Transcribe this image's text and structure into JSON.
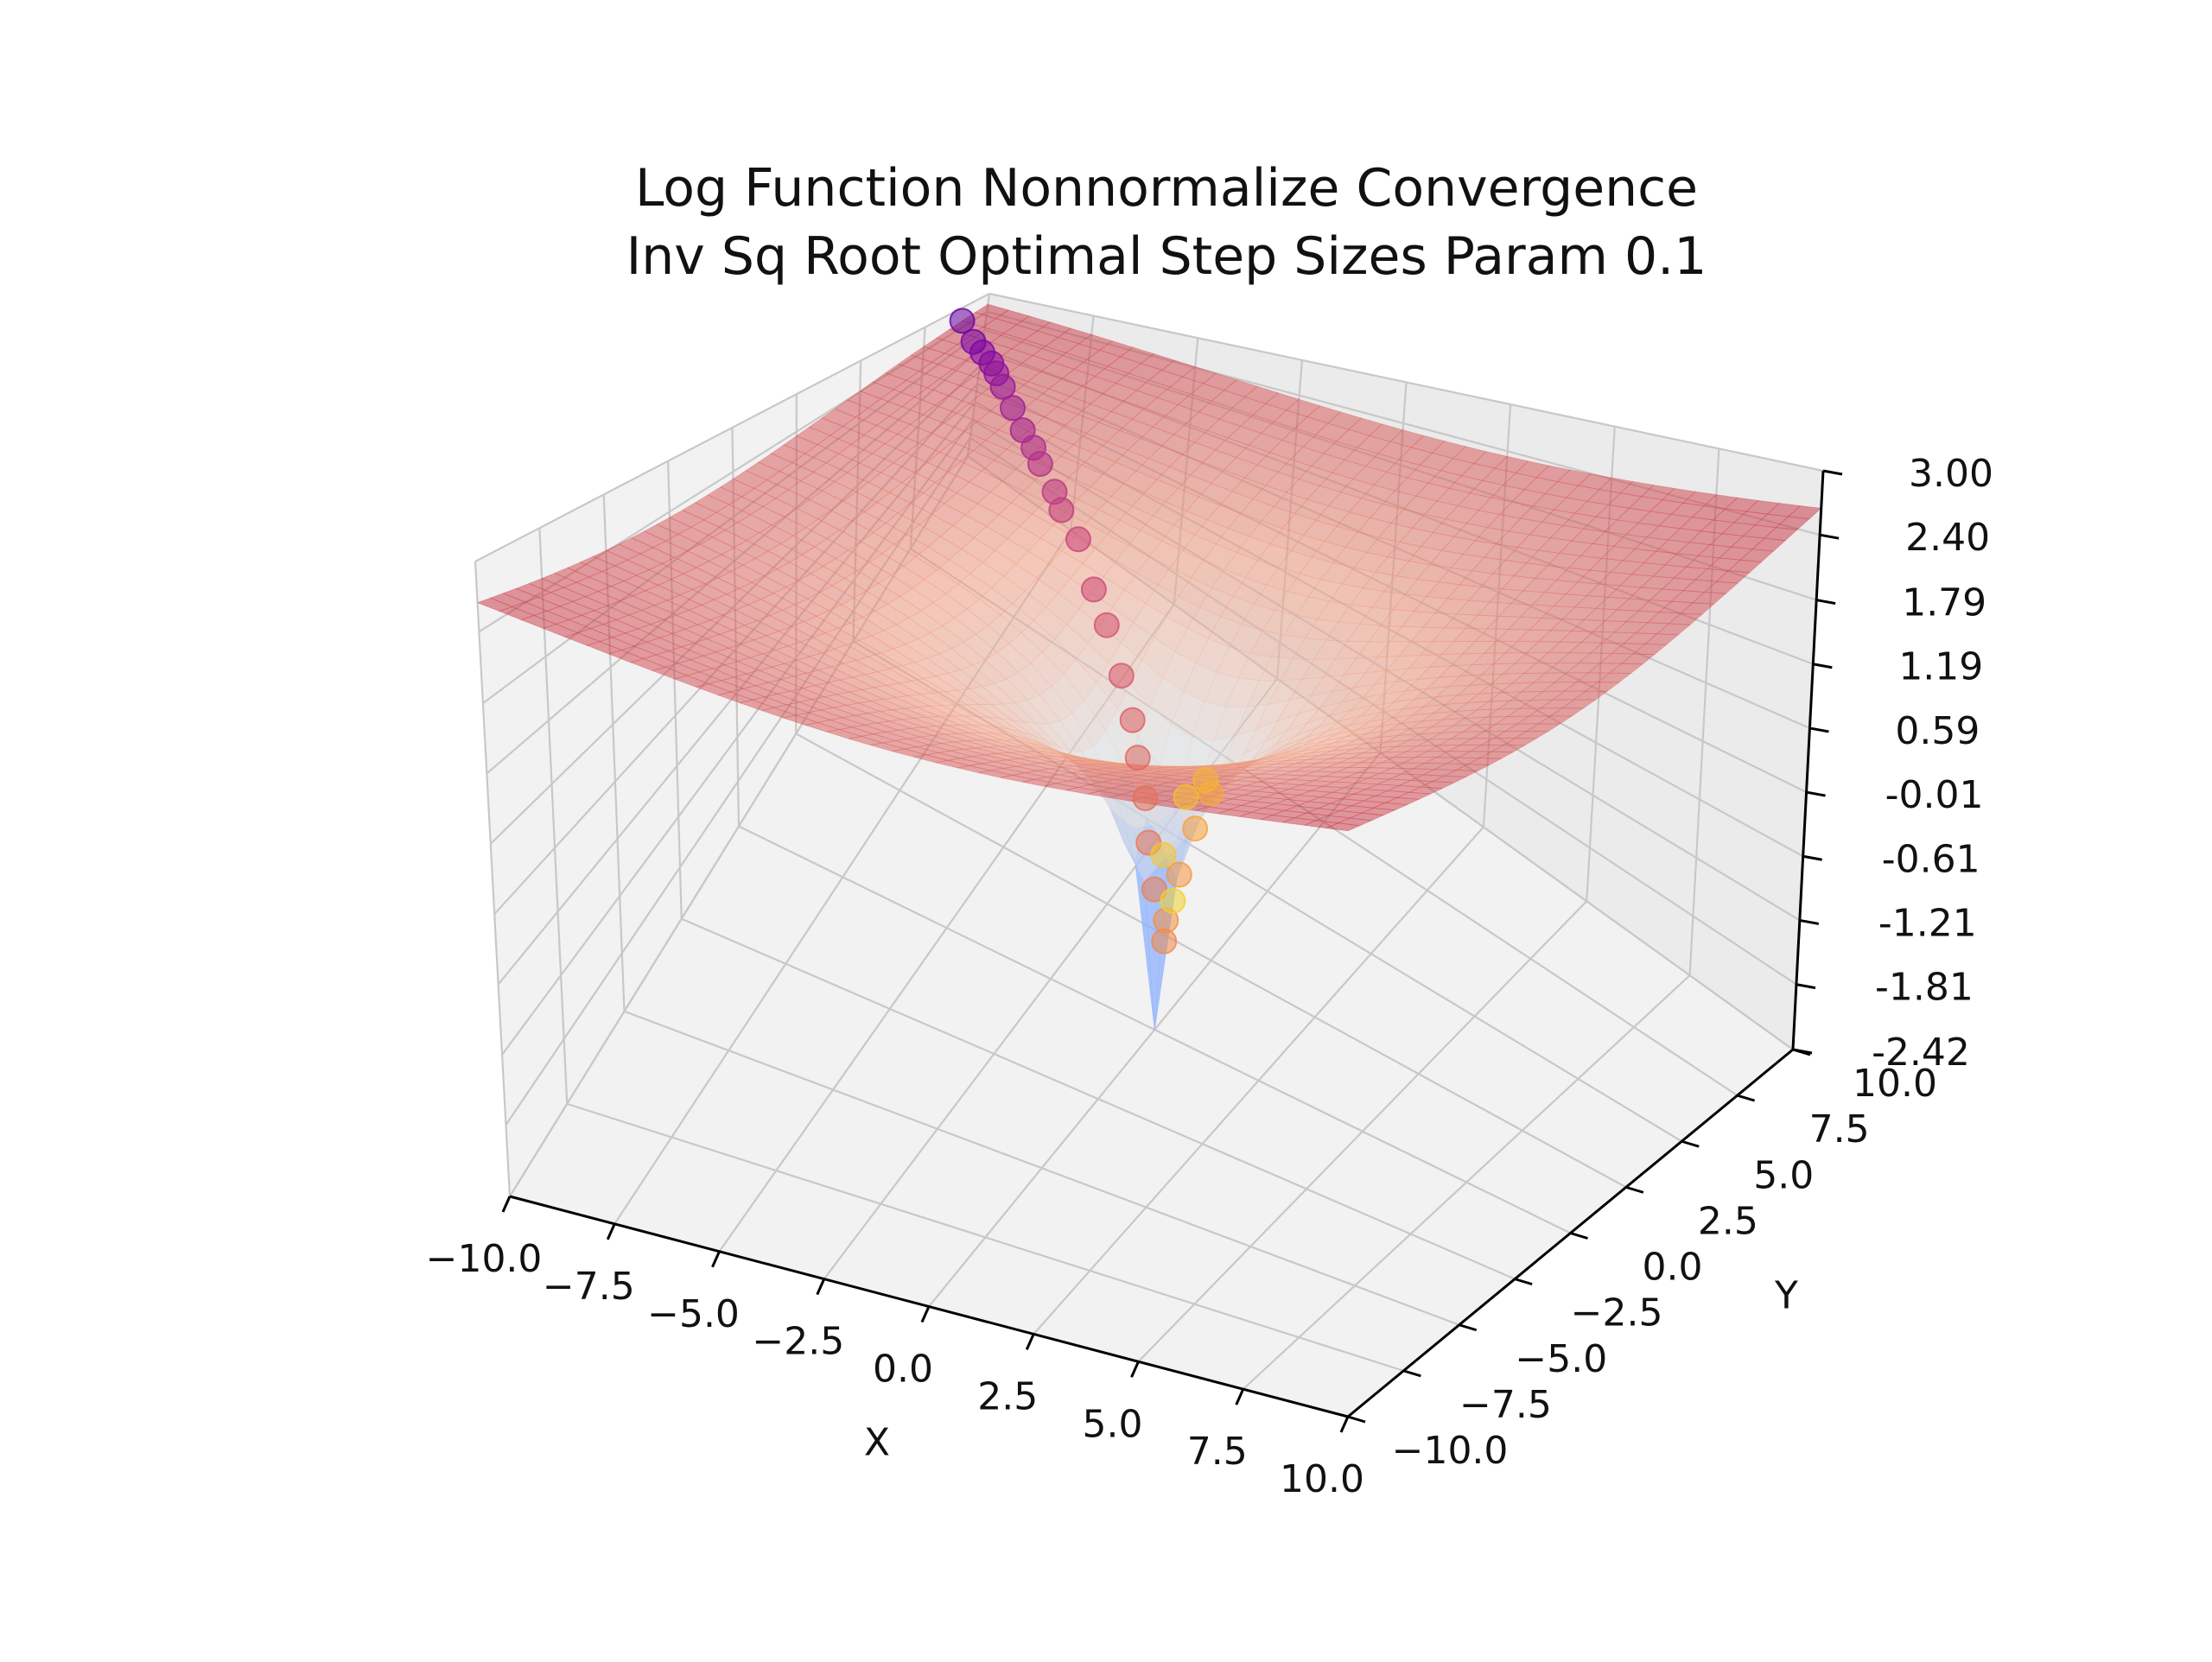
{
  "chart_data": {
    "type": "surface3d",
    "title_line1": "Log Function Nonnormalize Convergence",
    "title_line2": "Inv Sq Root Optimal Step Sizes Param 0.1",
    "xlabel": "X",
    "ylabel": "Y",
    "zlabel": "",
    "xlim": [
      -10,
      10
    ],
    "ylim": [
      -10,
      10
    ],
    "zlim": [
      -2.42,
      3.0
    ],
    "x_ticks": [
      "−10.0",
      "−7.5",
      "−5.0",
      "−2.5",
      "0.0",
      "2.5",
      "5.0",
      "7.5",
      "10.0"
    ],
    "y_ticks": [
      "−10.0",
      "−7.5",
      "−5.0",
      "−2.5",
      "0.0",
      "2.5",
      "5.0",
      "7.5",
      "10.0"
    ],
    "z_ticks": [
      "3.00",
      "2.40",
      "1.79",
      "1.19",
      "0.59",
      "-0.01",
      "-0.61",
      "-1.21",
      "-1.81",
      "-2.42"
    ],
    "grid": true,
    "surface": {
      "function": "log(x^2 + y^2)/2",
      "grid_range": [
        -10,
        10
      ],
      "colormap": "coolwarm",
      "alpha": 0.5
    },
    "trajectory": {
      "start_point": [
        -10,
        9
      ],
      "end_point": [
        0.3,
        0.2
      ],
      "colormap": "plasma",
      "points": [
        [
          -10.0,
          9.0
        ],
        [
          -9.3,
          8.3
        ],
        [
          -8.9,
          8.0
        ],
        [
          -8.5,
          7.7
        ],
        [
          -8.2,
          7.4
        ],
        [
          -7.8,
          7.0
        ],
        [
          -7.2,
          6.4
        ],
        [
          -6.6,
          5.8
        ],
        [
          -6.1,
          5.4
        ],
        [
          -5.7,
          5.0
        ],
        [
          -5.0,
          4.4
        ],
        [
          -4.6,
          4.0
        ],
        [
          -3.9,
          3.5
        ],
        [
          -3.0,
          2.6
        ],
        [
          -2.4,
          2.1
        ],
        [
          -1.7,
          1.5
        ],
        [
          -1.2,
          1.1
        ],
        [
          -0.9,
          0.8
        ],
        [
          -0.6,
          0.6
        ],
        [
          -0.4,
          0.4
        ],
        [
          -0.2,
          0.3
        ],
        [
          0.1,
          0.2
        ],
        [
          0.3,
          -0.1
        ],
        [
          0.5,
          0.1
        ],
        [
          0.7,
          0.4
        ],
        [
          0.9,
          0.7
        ],
        [
          0.6,
          1.0
        ],
        [
          0.2,
          0.9
        ],
        [
          -0.1,
          0.5
        ],
        [
          0.3,
          0.2
        ]
      ]
    }
  }
}
